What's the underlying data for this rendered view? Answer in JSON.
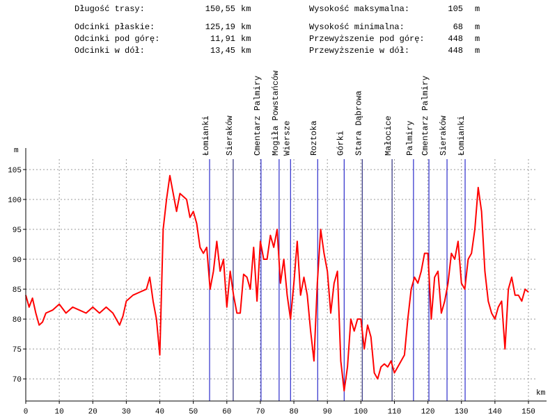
{
  "stats": {
    "left": [
      {
        "label": "Długość trasy:",
        "value": "150,55",
        "unit": "km"
      },
      {
        "label": "Odcinki płaskie:",
        "value": "125,19",
        "unit": "km"
      },
      {
        "label": "Odcinki pod górę:",
        "value": "11,91",
        "unit": "km"
      },
      {
        "label": "Odcinki w dół:",
        "value": "13,45",
        "unit": "km"
      }
    ],
    "right": [
      {
        "label": "Wysokość maksymalna:",
        "value": "105",
        "unit": "m"
      },
      {
        "label": "Wysokość minimalna:",
        "value": "68",
        "unit": "m"
      },
      {
        "label": "Przewyższenie pod górę:",
        "value": "448",
        "unit": "m"
      },
      {
        "label": "Przewyższenie w dół:",
        "value": "448",
        "unit": "m"
      }
    ]
  },
  "chart_data": {
    "type": "line",
    "y_label": "m",
    "x_label": "km",
    "xlim": [
      0,
      155.4
    ],
    "ylim": [
      66.3,
      108.6
    ],
    "xticks": [
      0,
      10,
      20,
      30,
      40,
      50,
      60,
      70,
      80,
      90,
      100,
      110,
      120,
      130,
      140,
      150
    ],
    "yticks": [
      70,
      75,
      80,
      85,
      90,
      95,
      100,
      105
    ],
    "grid": true,
    "waypoints": [
      {
        "name": "Łomianki",
        "x": 54.85,
        "color": "#0000c0"
      },
      {
        "name": "Sieraków",
        "x": 61.9,
        "color": "#000060"
      },
      {
        "name": "Cmentarz Palmiry",
        "x": 70.2,
        "color": "#0000c0"
      },
      {
        "name": "Mogiła Powstańców",
        "x": 75.6,
        "color": "#0000c0"
      },
      {
        "name": "Wiersze",
        "x": 79.0,
        "color": "#0000c0"
      },
      {
        "name": "Roztoka",
        "x": 87.1,
        "color": "#0000c0"
      },
      {
        "name": "Górki",
        "x": 95.0,
        "color": "#0000c0"
      },
      {
        "name": "Stara Dąbrowa",
        "x": 100.4,
        "color": "#000060"
      },
      {
        "name": "Małocice",
        "x": 109.3,
        "color": "#000060"
      },
      {
        "name": "Palmiry",
        "x": 115.7,
        "color": "#0000c0"
      },
      {
        "name": "Cmentarz Palmiry",
        "x": 120.3,
        "color": "#0000c0"
      },
      {
        "name": "Sieraków",
        "x": 125.7,
        "color": "#0000c0"
      },
      {
        "name": "Łomianki",
        "x": 131.1,
        "color": "#0000c0"
      }
    ],
    "x": [
      0,
      1,
      2,
      3,
      4,
      5,
      6,
      8,
      10,
      12,
      14,
      16,
      18,
      20,
      22,
      24,
      26,
      28,
      29,
      30,
      32,
      34,
      36,
      37,
      38,
      39,
      40,
      41,
      42,
      43,
      44,
      45,
      46,
      48,
      49,
      50,
      51,
      52,
      53,
      54,
      55,
      56,
      57,
      58,
      59,
      60,
      61,
      62,
      63,
      64,
      65,
      66,
      67,
      68,
      69,
      70,
      71,
      72,
      73,
      74,
      75,
      76,
      77,
      78,
      79,
      80,
      81,
      82,
      83,
      84,
      85,
      86,
      87,
      88,
      89,
      90,
      91,
      92,
      93,
      94,
      95,
      96,
      97,
      98,
      99,
      100,
      101,
      102,
      103,
      104,
      105,
      106,
      107,
      108,
      109,
      110,
      111,
      112,
      113,
      114,
      115,
      116,
      117,
      118,
      119,
      120,
      121,
      122,
      123,
      124,
      125,
      126,
      127,
      128,
      129,
      130,
      131,
      132,
      133,
      134,
      135,
      136,
      137,
      138,
      139,
      140,
      141,
      142,
      143,
      144,
      145,
      146,
      147,
      148,
      149,
      150
    ],
    "series": [
      {
        "color": "#ff0000",
        "values": [
          84,
          82,
          83.5,
          81,
          79,
          79.5,
          81,
          81.5,
          82.5,
          81,
          82,
          81.5,
          81,
          82,
          81,
          82,
          81,
          79,
          80.5,
          83,
          84,
          84.5,
          85,
          87,
          83,
          80,
          74,
          95,
          100,
          104,
          101,
          98,
          101,
          100,
          97,
          98,
          96,
          92,
          91,
          92,
          85,
          88,
          93,
          88,
          90,
          82,
          88,
          84,
          81,
          81,
          87.5,
          87,
          85,
          92,
          83,
          93,
          90,
          90,
          94,
          92,
          95,
          86,
          90,
          84,
          80,
          86,
          93,
          84,
          87,
          84,
          78,
          73,
          86,
          95,
          91,
          88,
          81,
          86,
          88,
          73,
          68,
          72,
          80,
          78,
          80,
          80,
          75,
          79,
          77,
          71,
          70,
          72,
          72.5,
          72,
          73,
          71,
          72,
          73,
          74,
          80,
          85,
          87,
          86,
          88,
          91,
          91,
          80,
          87,
          88,
          81,
          83,
          86,
          91,
          90,
          93,
          86,
          85,
          90,
          91,
          95,
          102,
          98,
          88,
          83,
          81,
          80,
          82,
          83,
          75,
          85,
          87,
          84,
          84,
          83,
          85,
          84.5
        ]
      }
    ]
  }
}
